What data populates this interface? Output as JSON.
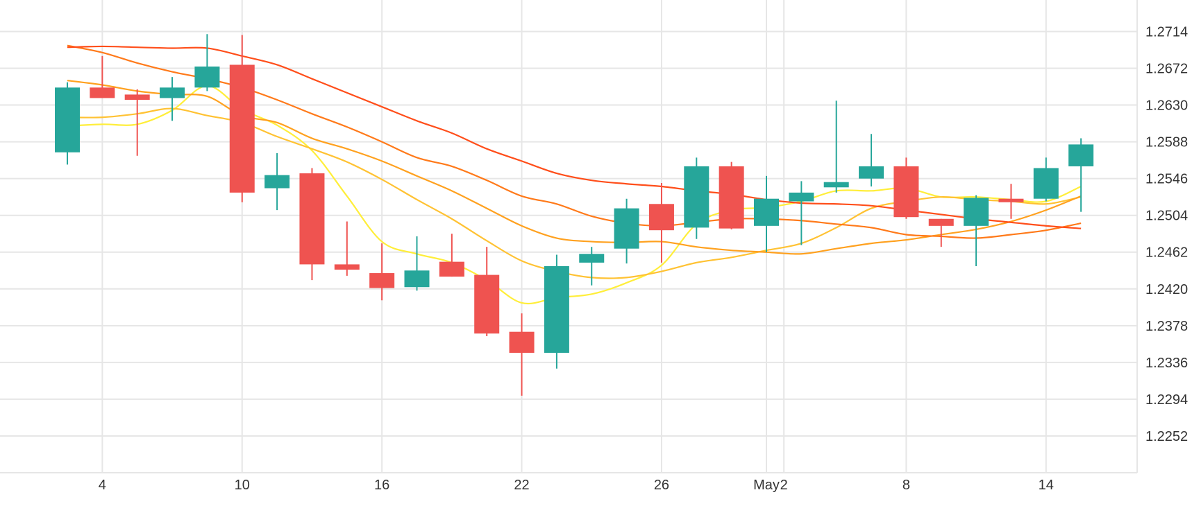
{
  "chart_data": {
    "type": "candlestick",
    "y_ticks": [
      "1.2714",
      "1.2672",
      "1.2630",
      "1.2588",
      "1.2546",
      "1.2504",
      "1.2462",
      "1.2420",
      "1.2378",
      "1.2336",
      "1.2294",
      "1.2252"
    ],
    "ylim": [
      1.221,
      1.275
    ],
    "x_ticks": [
      {
        "label": "4",
        "index": 1
      },
      {
        "label": "10",
        "index": 5
      },
      {
        "label": "16",
        "index": 9
      },
      {
        "label": "22",
        "index": 13
      },
      {
        "label": "26",
        "index": 17
      },
      {
        "label": "May",
        "index": 20
      },
      {
        "label": "2",
        "index": 20.5
      },
      {
        "label": "8",
        "index": 24
      },
      {
        "label": "14",
        "index": 28
      }
    ],
    "candles": [
      {
        "o": 1.2576,
        "h": 1.2656,
        "l": 1.2562,
        "c": 1.265
      },
      {
        "o": 1.265,
        "h": 1.2686,
        "l": 1.2638,
        "c": 1.2638
      },
      {
        "o": 1.2642,
        "h": 1.2648,
        "l": 1.2572,
        "c": 1.2636
      },
      {
        "o": 1.2638,
        "h": 1.2662,
        "l": 1.2612,
        "c": 1.265
      },
      {
        "o": 1.265,
        "h": 1.2711,
        "l": 1.2646,
        "c": 1.2674
      },
      {
        "o": 1.2676,
        "h": 1.271,
        "l": 1.2519,
        "c": 1.253
      },
      {
        "o": 1.2535,
        "h": 1.2575,
        "l": 1.251,
        "c": 1.255
      },
      {
        "o": 1.2552,
        "h": 1.2558,
        "l": 1.243,
        "c": 1.2448
      },
      {
        "o": 1.2448,
        "h": 1.2497,
        "l": 1.2435,
        "c": 1.2442
      },
      {
        "o": 1.2438,
        "h": 1.2472,
        "l": 1.2407,
        "c": 1.2421
      },
      {
        "o": 1.2422,
        "h": 1.248,
        "l": 1.2418,
        "c": 1.2441
      },
      {
        "o": 1.2451,
        "h": 1.2483,
        "l": 1.2434,
        "c": 1.2434
      },
      {
        "o": 1.2436,
        "h": 1.2468,
        "l": 1.2366,
        "c": 1.2369
      },
      {
        "o": 1.2371,
        "h": 1.2392,
        "l": 1.2298,
        "c": 1.2347
      },
      {
        "o": 1.2347,
        "h": 1.2459,
        "l": 1.2329,
        "c": 1.2446
      },
      {
        "o": 1.245,
        "h": 1.2468,
        "l": 1.2424,
        "c": 1.246
      },
      {
        "o": 1.2466,
        "h": 1.2523,
        "l": 1.2449,
        "c": 1.2512
      },
      {
        "o": 1.2517,
        "h": 1.2541,
        "l": 1.245,
        "c": 1.2487
      },
      {
        "o": 1.249,
        "h": 1.257,
        "l": 1.2477,
        "c": 1.256
      },
      {
        "o": 1.256,
        "h": 1.2565,
        "l": 1.2488,
        "c": 1.2489
      },
      {
        "o": 1.2492,
        "h": 1.2549,
        "l": 1.2462,
        "c": 1.2523
      },
      {
        "o": 1.252,
        "h": 1.2543,
        "l": 1.247,
        "c": 1.253
      },
      {
        "o": 1.2536,
        "h": 1.2635,
        "l": 1.253,
        "c": 1.2542
      },
      {
        "o": 1.2546,
        "h": 1.2597,
        "l": 1.2537,
        "c": 1.256
      },
      {
        "o": 1.256,
        "h": 1.257,
        "l": 1.25,
        "c": 1.2502
      },
      {
        "o": 1.25,
        "h": 1.25,
        "l": 1.2468,
        "c": 1.2492
      },
      {
        "o": 1.2492,
        "h": 1.2527,
        "l": 1.2446,
        "c": 1.2524
      },
      {
        "o": 1.2523,
        "h": 1.254,
        "l": 1.25,
        "c": 1.2519
      },
      {
        "o": 1.2523,
        "h": 1.257,
        "l": 1.252,
        "c": 1.2558
      },
      {
        "o": 1.256,
        "h": 1.2592,
        "l": 1.2508,
        "c": 1.2585
      }
    ],
    "moving_averages": [
      {
        "color": "#ffee3a",
        "values": [
          1.2606,
          1.2608,
          1.2608,
          1.2624,
          1.2652,
          1.2625,
          1.2607,
          1.2578,
          1.2526,
          1.2474,
          1.246,
          1.245,
          1.243,
          1.2404,
          1.241,
          1.2414,
          1.2427,
          1.2447,
          1.2494,
          1.251,
          1.2513,
          1.252,
          1.2532,
          1.2532,
          1.2535,
          1.2525,
          1.2525,
          1.2522,
          1.252,
          1.2537
        ]
      },
      {
        "color": "#ffc233",
        "values": [
          1.2616,
          1.2616,
          1.262,
          1.2626,
          1.2618,
          1.261,
          1.2594,
          1.258,
          1.2565,
          1.2545,
          1.2522,
          1.25,
          1.2475,
          1.2452,
          1.244,
          1.2433,
          1.2433,
          1.244,
          1.245,
          1.2456,
          1.2464,
          1.2472,
          1.249,
          1.2512,
          1.252,
          1.2525,
          1.2522,
          1.252,
          1.2517,
          1.2525
        ]
      },
      {
        "color": "#ffa11f",
        "values": [
          1.2658,
          1.2653,
          1.2646,
          1.2642,
          1.264,
          1.2618,
          1.261,
          1.2592,
          1.258,
          1.2566,
          1.2549,
          1.2532,
          1.2512,
          1.2492,
          1.2478,
          1.2474,
          1.2473,
          1.2474,
          1.2468,
          1.2464,
          1.2462,
          1.246,
          1.2466,
          1.2472,
          1.2476,
          1.2482,
          1.2488,
          1.2497,
          1.251,
          1.2526
        ]
      },
      {
        "color": "#ff7a1a",
        "values": [
          1.2698,
          1.269,
          1.2678,
          1.2668,
          1.266,
          1.265,
          1.2636,
          1.262,
          1.2605,
          1.2588,
          1.257,
          1.256,
          1.2544,
          1.2526,
          1.2517,
          1.2503,
          1.2495,
          1.2492,
          1.2496,
          1.25,
          1.25,
          1.2498,
          1.2494,
          1.249,
          1.2482,
          1.248,
          1.2478,
          1.2482,
          1.2487,
          1.2495
        ]
      },
      {
        "color": "#ff4e1a",
        "values": [
          1.2696,
          1.2697,
          1.2696,
          1.2695,
          1.2695,
          1.2686,
          1.2676,
          1.266,
          1.2644,
          1.2628,
          1.2612,
          1.2598,
          1.258,
          1.2566,
          1.2552,
          1.2544,
          1.254,
          1.2537,
          1.2532,
          1.2528,
          1.2522,
          1.2518,
          1.2517,
          1.2515,
          1.251,
          1.2505,
          1.25,
          1.2496,
          1.2492,
          1.2489
        ]
      }
    ],
    "up_color": "#26a69a",
    "down_color": "#ef5350",
    "grid": true
  }
}
